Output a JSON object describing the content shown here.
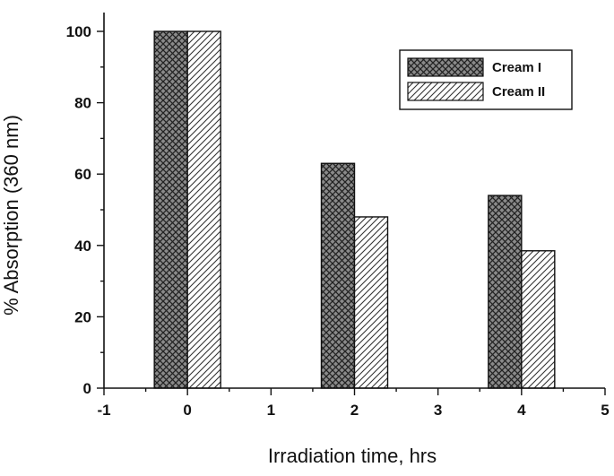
{
  "chart_data": {
    "type": "bar",
    "xlabel": "Irradiation time, hrs",
    "ylabel": "% Absorption (360 nm)",
    "xlim": [
      -1,
      5
    ],
    "ylim": [
      0,
      105
    ],
    "x_ticks": [
      -1,
      0,
      1,
      2,
      3,
      4,
      5
    ],
    "y_ticks": [
      0,
      20,
      40,
      60,
      80,
      100
    ],
    "x": [
      0,
      2,
      4
    ],
    "series": [
      {
        "name": "Cream I",
        "values": [
          100,
          63,
          54
        ],
        "pattern": "crosshatch",
        "color": "#8a8a8a"
      },
      {
        "name": "Cream II",
        "values": [
          100,
          48,
          38.5
        ],
        "pattern": "diagonal",
        "color": "#ffffff"
      }
    ],
    "legend_position": "top-right",
    "grid": false
  }
}
